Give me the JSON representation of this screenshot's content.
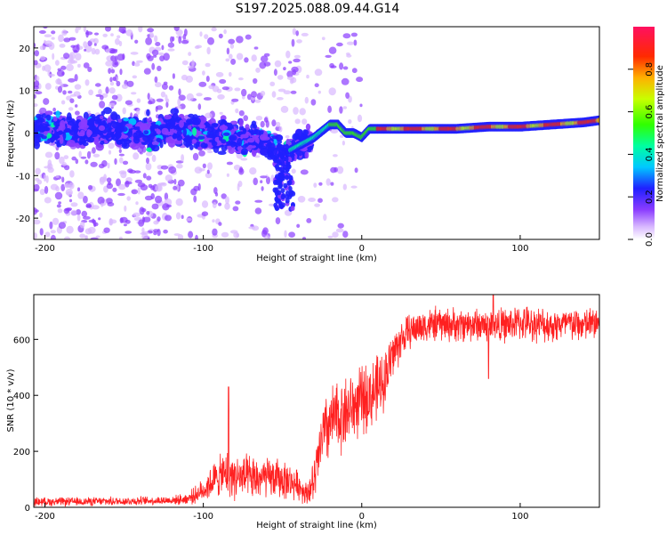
{
  "title": "S197.2025.088.09.44.G14",
  "chart_data": [
    {
      "type": "heatmap",
      "xlabel": "Height of straight line (km)",
      "ylabel": "Frequency (Hz)",
      "xlim": [
        -207,
        150
      ],
      "ylim": [
        -25,
        25
      ],
      "xticks": [
        "-200",
        "-100",
        "0",
        "100"
      ],
      "yticks": [
        "-20",
        "-10",
        "0",
        "10",
        "20"
      ],
      "colorbar": {
        "label": "Normalized spectral amplitude",
        "range": [
          0,
          1
        ],
        "ticks": [
          "0.0",
          "0.2",
          "0.4",
          "0.6",
          "0.8"
        ]
      },
      "ridge": {
        "x": [
          -200,
          -180,
          -160,
          -140,
          -120,
          -100,
          -80,
          -60,
          -50,
          -40,
          -30,
          -20,
          -15,
          -10,
          -5,
          0,
          5,
          10,
          20,
          40,
          60,
          80,
          100,
          120,
          140,
          150
        ],
        "y": [
          1,
          0,
          1,
          0,
          1,
          0,
          -1,
          -2,
          -5,
          -3,
          -1,
          2,
          2,
          0,
          0,
          -1,
          1,
          1,
          1,
          1,
          1,
          1.5,
          1.5,
          2,
          2.5,
          3
        ]
      },
      "grid": false
    },
    {
      "type": "line",
      "xlabel": "Height of straight line (km)",
      "ylabel": "SNR (10 * v/v)",
      "xlim": [
        -207,
        150
      ],
      "ylim": [
        0,
        760
      ],
      "xticks": [
        "-200",
        "-100",
        "0",
        "100"
      ],
      "yticks": [
        "0",
        "200",
        "400",
        "600"
      ],
      "color": "#ff2020",
      "series_envelope": {
        "x": [
          -207,
          -180,
          -150,
          -120,
          -110,
          -100,
          -95,
          -90,
          -85,
          -80,
          -70,
          -60,
          -50,
          -40,
          -35,
          -30,
          -25,
          -20,
          -15,
          -10,
          -5,
          0,
          5,
          10,
          15,
          20,
          25,
          30,
          40,
          50,
          60,
          70,
          80,
          90,
          100,
          110,
          120,
          130,
          140,
          150
        ],
        "mean": [
          20,
          20,
          22,
          25,
          30,
          60,
          90,
          110,
          120,
          110,
          100,
          105,
          100,
          80,
          50,
          90,
          250,
          300,
          320,
          340,
          360,
          380,
          400,
          420,
          470,
          550,
          600,
          630,
          650,
          655,
          650,
          655,
          650,
          650,
          660,
          655,
          650,
          655,
          650,
          660
        ],
        "spread": [
          15,
          15,
          15,
          15,
          20,
          40,
          60,
          70,
          80,
          80,
          80,
          70,
          70,
          50,
          40,
          80,
          120,
          130,
          130,
          130,
          120,
          120,
          120,
          120,
          100,
          90,
          70,
          60,
          60,
          60,
          60,
          60,
          60,
          60,
          60,
          60,
          60,
          60,
          60,
          60
        ]
      },
      "peaks": [
        {
          "x": -84,
          "y": 430
        },
        {
          "x": 83,
          "y": 760
        },
        {
          "x": 80,
          "y": 460
        }
      ],
      "grid": false
    }
  ]
}
